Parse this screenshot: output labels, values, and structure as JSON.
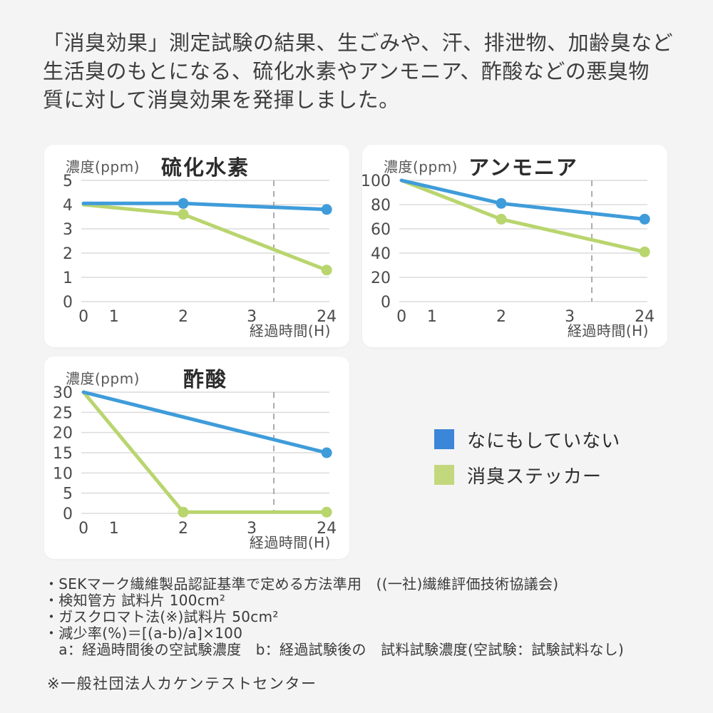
{
  "page": {
    "background": "#f4f4f5",
    "card_background": "#ffffff"
  },
  "header": {
    "text": "「消臭効果」測定試験の結果、生ごみや、汗、排泄物、加齢臭など\n生活臭のもとになる、硫化水素やアンモニア、酢酸などの悪臭物\n質に対して消臭効果を発揮しました。"
  },
  "legend": {
    "items": [
      {
        "label": "なにもしていない",
        "color": "#3b86d8"
      },
      {
        "label": "消臭ステッカー",
        "color": "#c3d87c"
      }
    ]
  },
  "chart_data": [
    {
      "type": "line",
      "title": "硫化水素",
      "ylabel": "濃度(ppm)",
      "xlabel": "経過時間(H)",
      "x_labels": [
        "0",
        "1",
        "2",
        "3",
        "24"
      ],
      "x_values": [
        0,
        1,
        2,
        3,
        24
      ],
      "ylim": [
        0,
        5
      ],
      "yticks": [
        0,
        1,
        2,
        3,
        4,
        5
      ],
      "axis_break_between": [
        3,
        24
      ],
      "grid": true,
      "series": [
        {
          "name": "なにもしていない",
          "color": "#3f9cda",
          "x": [
            0,
            2,
            24
          ],
          "values": [
            4.05,
            4.05,
            3.8
          ],
          "dots": [
            2,
            24
          ]
        },
        {
          "name": "消臭ステッカー",
          "color": "#b9d56e",
          "x": [
            0,
            2,
            24
          ],
          "values": [
            4.0,
            3.6,
            1.3
          ],
          "dots": [
            2,
            24
          ]
        }
      ]
    },
    {
      "type": "line",
      "title": "アンモニア",
      "ylabel": "濃度(ppm)",
      "xlabel": "経過時間(H)",
      "x_labels": [
        "0",
        "1",
        "2",
        "3",
        "24"
      ],
      "x_values": [
        0,
        1,
        2,
        3,
        24
      ],
      "ylim": [
        0,
        100
      ],
      "yticks": [
        0,
        20,
        40,
        60,
        80,
        100
      ],
      "axis_break_between": [
        3,
        24
      ],
      "grid": true,
      "series": [
        {
          "name": "なにもしていない",
          "color": "#3f9cda",
          "x": [
            0,
            2,
            24
          ],
          "values": [
            100,
            81,
            68
          ],
          "dots": [
            2,
            24
          ]
        },
        {
          "name": "消臭ステッカー",
          "color": "#b9d56e",
          "x": [
            0,
            2,
            24
          ],
          "values": [
            100,
            68,
            41
          ],
          "dots": [
            2,
            24
          ]
        }
      ]
    },
    {
      "type": "line",
      "title": "酢酸",
      "ylabel": "濃度(ppm)",
      "xlabel": "経過時間(H)",
      "x_labels": [
        "0",
        "1",
        "2",
        "3",
        "24"
      ],
      "x_values": [
        0,
        1,
        2,
        3,
        24
      ],
      "ylim": [
        0,
        30
      ],
      "yticks": [
        0,
        5,
        10,
        15,
        20,
        25,
        30
      ],
      "axis_break_between": [
        3,
        24
      ],
      "grid": true,
      "series": [
        {
          "name": "なにもしていない",
          "color": "#3f9cda",
          "x": [
            0,
            24
          ],
          "values": [
            30,
            15
          ],
          "dots": [
            24
          ]
        },
        {
          "name": "消臭ステッカー",
          "color": "#b9d56e",
          "x": [
            0,
            2,
            24
          ],
          "values": [
            30,
            0.3,
            0.3
          ],
          "dots": [
            2,
            24
          ]
        }
      ]
    }
  ],
  "footnotes": {
    "lines": "・SEKマーク繊維製品認証基準で定める方法準用　((一社)繊維評価技術協議会)\n・検知管方 試料片 100cm²\n・ガスクロマト法(※)試料片 50cm²\n・減少率(%)＝[(a-b)/a]×100\n　a：経過時間後の空試験濃度　b：経過試験後の　試料試験濃度(空試験：試験試料なし)",
    "note": "※一般社団法人カケンテストセンター"
  }
}
